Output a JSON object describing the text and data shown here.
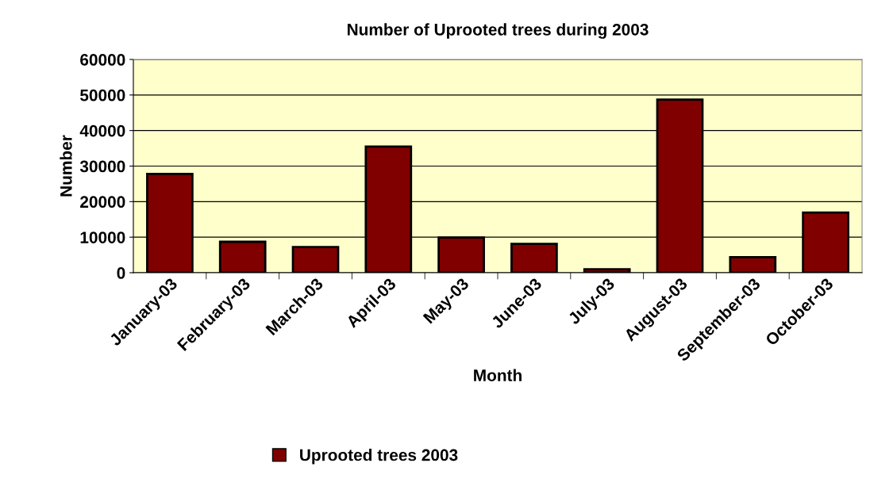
{
  "chart_data": {
    "type": "bar",
    "title": "Number of Uprooted trees during 2003",
    "xlabel": "Month",
    "ylabel": "Number",
    "categories": [
      "January-03",
      "February-03",
      "March-03",
      "April-03",
      "May-03",
      "June-03",
      "July-03",
      "August-03",
      "September-03",
      "October-03"
    ],
    "series": [
      {
        "name": "Uprooted trees 2003",
        "color": "#800000",
        "values": [
          27800,
          8700,
          7200,
          35500,
          9900,
          8100,
          1000,
          48700,
          4400,
          16900
        ]
      }
    ],
    "ylim": [
      0,
      60000
    ],
    "yticks": [
      0,
      10000,
      20000,
      30000,
      40000,
      50000,
      60000
    ],
    "grid": "y",
    "legend": "bottom"
  }
}
